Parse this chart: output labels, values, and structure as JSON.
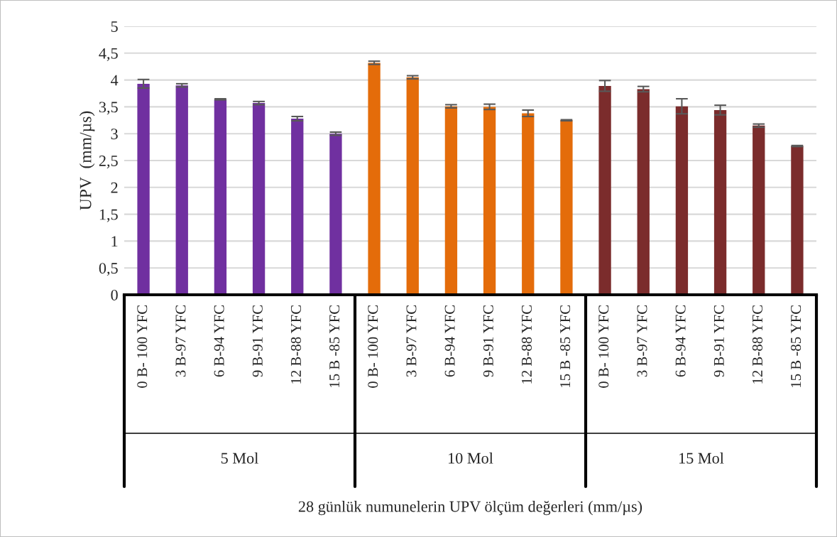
{
  "chart_data": {
    "type": "bar",
    "ylabel": "UPV  (mm/µs)",
    "categories": [
      "0 B- 100 YFC",
      "3 B-97 YFC",
      "6 B-94 YFC",
      "9 B-91 YFC",
      "12 B-88 YFC",
      "15 B -85 YFC",
      "0 B- 100 YFC",
      "3 B-97 YFC",
      "6 B-94 YFC",
      "9 B-91 YFC",
      "12 B-88 YFC",
      "15 B -85 YFC",
      "0 B- 100 YFC",
      "3 B-97 YFC",
      "6 B-94 YFC",
      "9 B-91 YFC",
      "12 B-88 YFC",
      "15 B -85 YFC"
    ],
    "values": [
      3.93,
      3.9,
      3.64,
      3.57,
      3.28,
      3.0,
      4.32,
      4.05,
      3.51,
      3.5,
      3.38,
      3.25,
      3.89,
      3.83,
      3.51,
      3.44,
      3.15,
      2.77
    ],
    "errors": [
      0.08,
      0.03,
      0.01,
      0.03,
      0.04,
      0.03,
      0.03,
      0.03,
      0.03,
      0.05,
      0.06,
      0.01,
      0.1,
      0.05,
      0.14,
      0.09,
      0.03,
      0.01
    ],
    "colors": [
      "#7030a0",
      "#7030a0",
      "#7030a0",
      "#7030a0",
      "#7030a0",
      "#7030a0",
      "#e46c0a",
      "#e46c0a",
      "#e46c0a",
      "#e46c0a",
      "#e46c0a",
      "#e46c0a",
      "#7b2c2c",
      "#7b2c2c",
      "#7b2c2c",
      "#7b2c2c",
      "#7b2c2c",
      "#7b2c2c"
    ],
    "annotations": [
      "5 Mol",
      "10 Mol",
      "15 Mol",
      "28 günlük numunelerin UPV ölçüm değerleri (mm/µs)"
    ],
    "ylim": [
      0,
      5
    ],
    "yticks": [
      0,
      {
        "value": 0.5,
        "label": "0,5"
      },
      1,
      {
        "value": 1.5,
        "label": "1,5"
      },
      2,
      {
        "value": 2.5,
        "label": "2,5"
      },
      3,
      {
        "value": 3.5,
        "label": "3,5"
      },
      4,
      {
        "value": 4.5,
        "label": "4,5"
      },
      5
    ],
    "grid": "y",
    "legend": false
  }
}
